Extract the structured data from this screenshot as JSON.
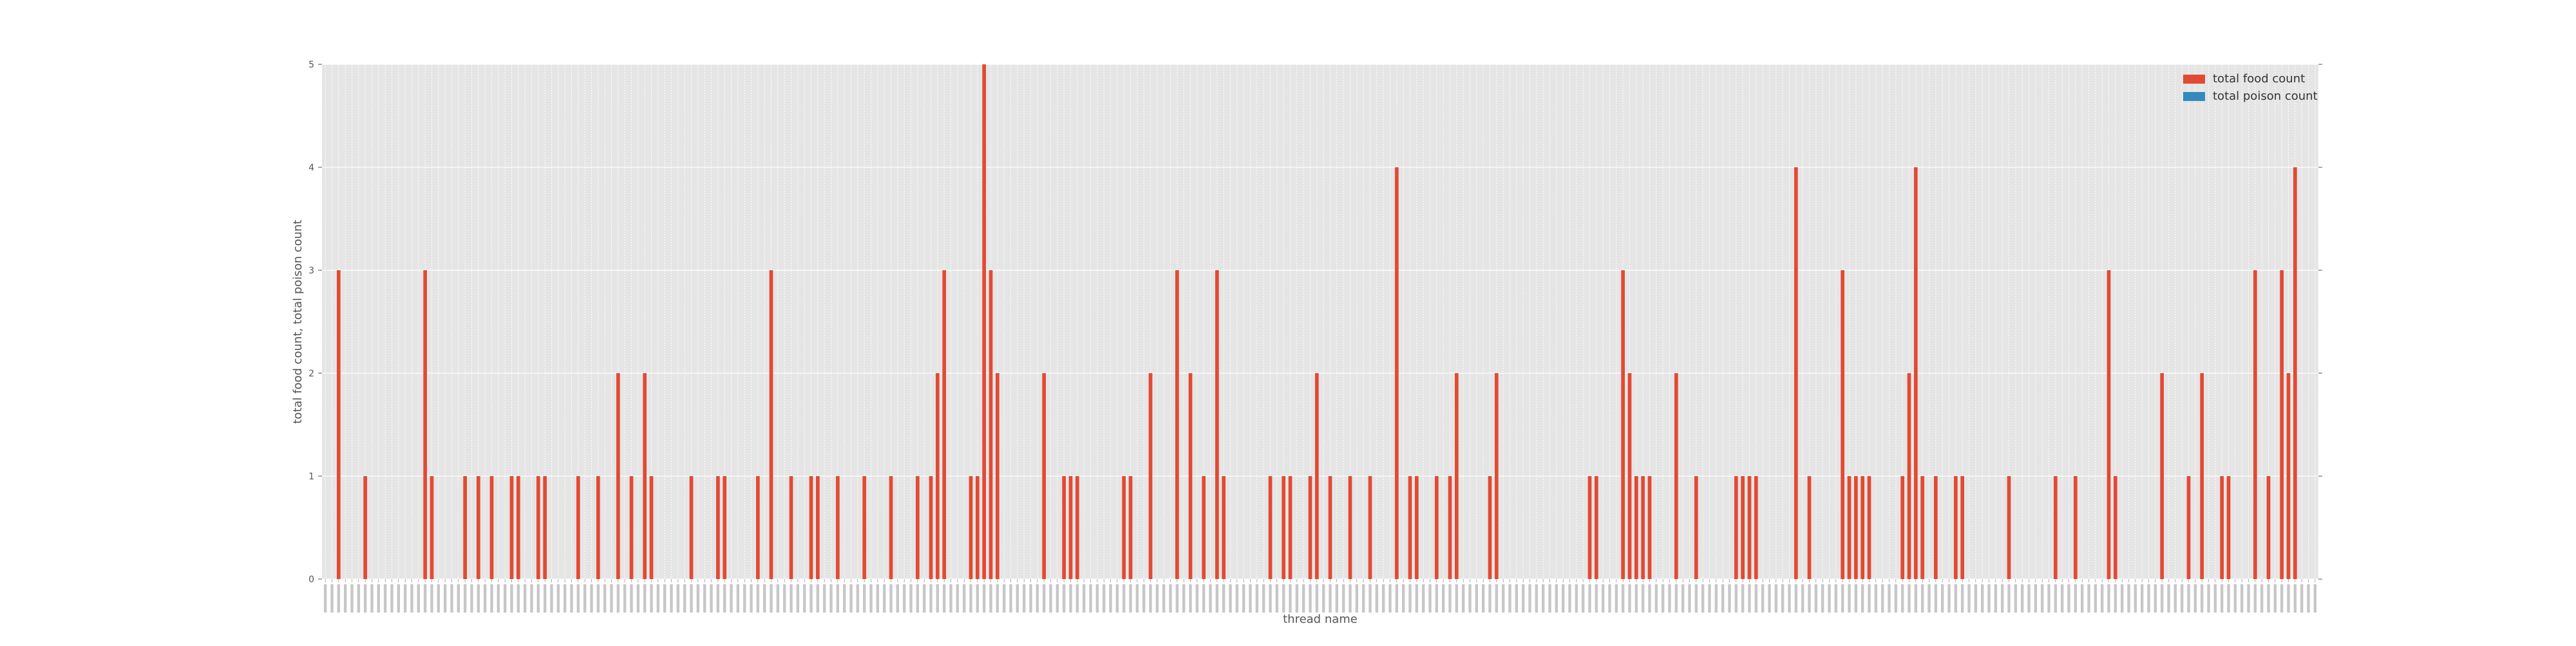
{
  "chart_data": {
    "type": "bar",
    "xlabel": "thread name",
    "ylabel": "total food count, total poison count",
    "ylim": [
      0,
      5
    ],
    "yticks": [
      "0",
      "1",
      "2",
      "3",
      "4",
      "5"
    ],
    "grid": true,
    "legend_placement": "top-right",
    "background_color": "#e5e5e5",
    "grid_color": "#ffffff",
    "category_count": 300,
    "x_tick_labels": "dense, rotated 90°; each label is an individual thread name too small to read",
    "series": [
      {
        "name": "total food count",
        "color": "#e24a33",
        "nonzero": [
          [
            2,
            3
          ],
          [
            6,
            1
          ],
          [
            15,
            3
          ],
          [
            16,
            1
          ],
          [
            21,
            1
          ],
          [
            23,
            1
          ],
          [
            25,
            1
          ],
          [
            28,
            1
          ],
          [
            29,
            1
          ],
          [
            32,
            1
          ],
          [
            33,
            1
          ],
          [
            38,
            1
          ],
          [
            41,
            1
          ],
          [
            44,
            2
          ],
          [
            46,
            1
          ],
          [
            48,
            2
          ],
          [
            49,
            1
          ],
          [
            55,
            1
          ],
          [
            59,
            1
          ],
          [
            60,
            1
          ],
          [
            65,
            1
          ],
          [
            67,
            3
          ],
          [
            70,
            1
          ],
          [
            73,
            1
          ],
          [
            74,
            1
          ],
          [
            77,
            1
          ],
          [
            81,
            1
          ],
          [
            85,
            1
          ],
          [
            89,
            1
          ],
          [
            91,
            1
          ],
          [
            92,
            2
          ],
          [
            93,
            3
          ],
          [
            97,
            1
          ],
          [
            98,
            1
          ],
          [
            99,
            5
          ],
          [
            100,
            3
          ],
          [
            101,
            2
          ],
          [
            108,
            2
          ],
          [
            111,
            1
          ],
          [
            112,
            1
          ],
          [
            113,
            1
          ],
          [
            120,
            1
          ],
          [
            121,
            1
          ],
          [
            124,
            2
          ],
          [
            128,
            3
          ],
          [
            130,
            2
          ],
          [
            132,
            1
          ],
          [
            134,
            3
          ],
          [
            135,
            1
          ],
          [
            142,
            1
          ],
          [
            144,
            1
          ],
          [
            145,
            1
          ],
          [
            148,
            1
          ],
          [
            149,
            2
          ],
          [
            151,
            1
          ],
          [
            154,
            1
          ],
          [
            157,
            1
          ],
          [
            161,
            4
          ],
          [
            163,
            1
          ],
          [
            164,
            1
          ],
          [
            167,
            1
          ],
          [
            169,
            1
          ],
          [
            170,
            2
          ],
          [
            175,
            1
          ],
          [
            176,
            2
          ],
          [
            190,
            1
          ],
          [
            191,
            1
          ],
          [
            195,
            3
          ],
          [
            196,
            2
          ],
          [
            197,
            1
          ],
          [
            198,
            1
          ],
          [
            199,
            1
          ],
          [
            203,
            2
          ],
          [
            206,
            1
          ],
          [
            212,
            1
          ],
          [
            213,
            1
          ],
          [
            214,
            1
          ],
          [
            215,
            1
          ],
          [
            221,
            4
          ],
          [
            223,
            1
          ],
          [
            228,
            3
          ],
          [
            229,
            1
          ],
          [
            230,
            1
          ],
          [
            231,
            1
          ],
          [
            232,
            1
          ],
          [
            237,
            1
          ],
          [
            238,
            2
          ],
          [
            239,
            4
          ],
          [
            240,
            1
          ],
          [
            242,
            1
          ],
          [
            245,
            1
          ],
          [
            246,
            1
          ],
          [
            253,
            1
          ],
          [
            260,
            1
          ],
          [
            263,
            1
          ],
          [
            268,
            3
          ],
          [
            269,
            1
          ],
          [
            276,
            2
          ],
          [
            280,
            1
          ],
          [
            282,
            2
          ],
          [
            285,
            1
          ],
          [
            286,
            1
          ],
          [
            290,
            3
          ],
          [
            292,
            1
          ],
          [
            294,
            3
          ],
          [
            295,
            2
          ],
          [
            296,
            4
          ]
        ]
      },
      {
        "name": "total poison count",
        "color": "#348abd",
        "nonzero": []
      }
    ]
  }
}
